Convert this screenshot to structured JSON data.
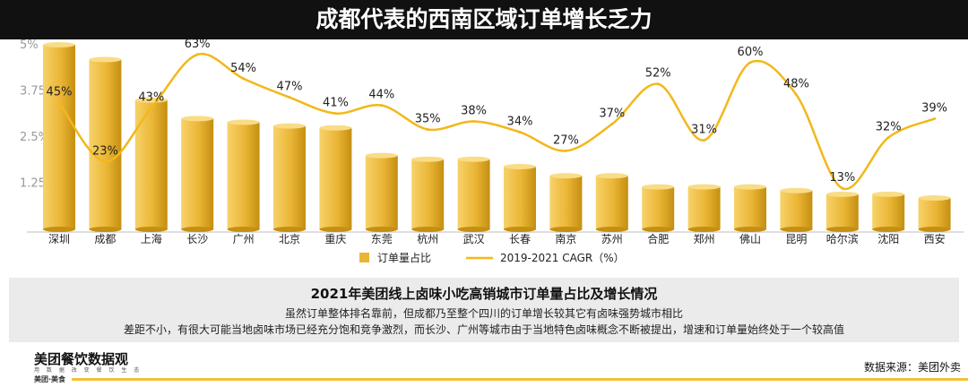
{
  "header": {
    "title": "成都代表的西南区域订单增长乏力"
  },
  "chart_data": {
    "type": "bar",
    "categories": [
      "深圳",
      "成都",
      "上海",
      "长沙",
      "广州",
      "北京",
      "重庆",
      "东莞",
      "杭州",
      "武汉",
      "长春",
      "南京",
      "苏州",
      "合肥",
      "郑州",
      "佛山",
      "昆明",
      "哈尔滨",
      "沈阳",
      "西安"
    ],
    "series": [
      {
        "name": "订单量占比",
        "type": "bar",
        "axis": "left",
        "values": [
          5.0,
          4.6,
          3.5,
          3.0,
          2.9,
          2.8,
          2.75,
          2.0,
          1.9,
          1.9,
          1.7,
          1.45,
          1.45,
          1.15,
          1.15,
          1.15,
          1.05,
          0.95,
          0.95,
          0.85
        ]
      },
      {
        "name": "2019-2021 CAGR（%）",
        "type": "line",
        "axis": "right",
        "values": [
          45,
          23,
          43,
          63,
          54,
          47,
          41,
          44,
          35,
          38,
          34,
          27,
          37,
          52,
          31,
          60,
          48,
          13,
          32,
          39
        ],
        "labels": [
          "45%",
          "23%",
          "43%",
          "63%",
          "54%",
          "47%",
          "41%",
          "44%",
          "35%",
          "38%",
          "34%",
          "27%",
          "37%",
          "52%",
          "31%",
          "60%",
          "48%",
          "13%",
          "32%",
          "39%"
        ]
      }
    ],
    "yticks": [
      "1.25%",
      "2.5%",
      "3.75%",
      "5%"
    ],
    "ytick_values": [
      1.25,
      2.5,
      3.75,
      5
    ],
    "ylim": [
      0,
      5
    ],
    "y2lim": [
      0,
      70
    ],
    "legend": {
      "position": "bottom",
      "bar_label": "订单量占比",
      "line_label": "2019-2021 CAGR（%）"
    },
    "colors": {
      "bar_light": "#f7d26a",
      "bar_mid": "#eab534",
      "bar_dark": "#c48f12",
      "bar_top": "#f9dc86",
      "line": "#f2b81a",
      "axis": "#bdbdbd"
    }
  },
  "summary": {
    "title": "2021年美团线上卤味小吃高销城市订单量占比及增长情况",
    "lines": [
      "虽然订单整体排名靠前，但成都乃至整个四川的订单增长较其它有卤味强势城市相比",
      "差距不小，有很大可能当地卤味市场已经充分饱和竞争激烈，而长沙、广州等城市由于当地特色卤味概念不断被提出，增速和订单量始终处于一个较高值"
    ]
  },
  "footer": {
    "brand": "美团餐饮数据观",
    "brand_sub": "用 数 据 改 变 餐 饮 生 态",
    "brand_tag": "美团·美食",
    "source": "数据来源：美团外卖"
  }
}
